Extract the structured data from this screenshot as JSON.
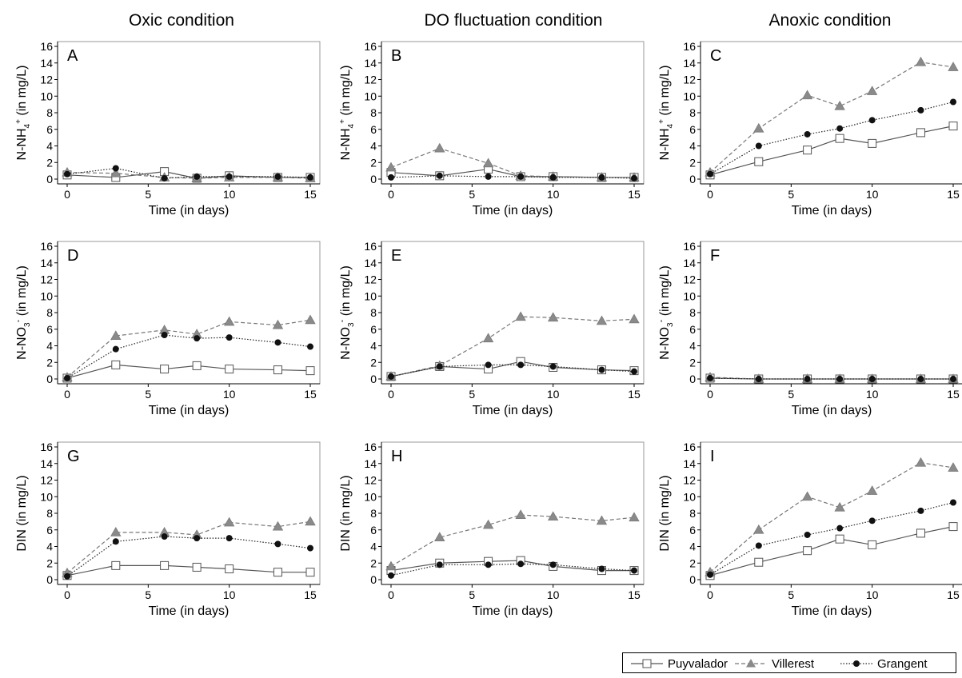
{
  "column_titles": [
    "Oxic condition",
    "DO fluctuation condition",
    "Anoxic condition"
  ],
  "legend": [
    {
      "name": "Puyvalador",
      "marker": "square-open",
      "dash": "solid"
    },
    {
      "name": "Villerest",
      "marker": "triangle-gray",
      "dash": "dashed"
    },
    {
      "name": "Grangent",
      "marker": "circle-black",
      "dash": "dotted"
    }
  ],
  "colors": {
    "Puyvalador": "#666666",
    "Villerest": "#888888",
    "Grangent": "#111111"
  },
  "chart_data": [
    {
      "type": "line",
      "panel": "A",
      "row_ylabel": "NH4",
      "xlabel": "Time (in days)",
      "x": [
        0,
        3,
        6,
        8,
        10,
        13,
        15
      ],
      "xlim": [
        0,
        15
      ],
      "ylim": [
        0,
        16
      ],
      "xticks": [
        0,
        5,
        10,
        15
      ],
      "yticks": [
        0,
        2,
        4,
        6,
        8,
        10,
        12,
        14,
        16
      ],
      "series": [
        {
          "name": "Puyvalador",
          "values": [
            0.5,
            0.2,
            0.9,
            0.1,
            0.4,
            0.2,
            0.2
          ]
        },
        {
          "name": "Villerest",
          "values": [
            0.8,
            0.7,
            0.2,
            0.1,
            0.2,
            0.2,
            0.1
          ]
        },
        {
          "name": "Grangent",
          "values": [
            0.6,
            1.3,
            0.1,
            0.3,
            0.3,
            0.3,
            0.2
          ]
        }
      ]
    },
    {
      "type": "line",
      "panel": "B",
      "row_ylabel": "NH4",
      "xlabel": "Time (in days)",
      "x": [
        0,
        3,
        6,
        8,
        10,
        13,
        15
      ],
      "xlim": [
        0,
        15
      ],
      "ylim": [
        0,
        16
      ],
      "xticks": [
        0,
        5,
        10,
        15
      ],
      "yticks": [
        0,
        2,
        4,
        6,
        8,
        10,
        12,
        14,
        16
      ],
      "series": [
        {
          "name": "Puyvalador",
          "values": [
            0.8,
            0.4,
            1.2,
            0.3,
            0.3,
            0.2,
            0.2
          ]
        },
        {
          "name": "Villerest",
          "values": [
            1.4,
            3.7,
            1.9,
            0.4,
            0.3,
            0.2,
            0.2
          ]
        },
        {
          "name": "Grangent",
          "values": [
            0.2,
            0.4,
            0.3,
            0.3,
            0.2,
            0.2,
            0.1
          ]
        }
      ]
    },
    {
      "type": "line",
      "panel": "C",
      "row_ylabel": "NH4",
      "xlabel": "Time (in days)",
      "x": [
        0,
        3,
        6,
        8,
        10,
        13,
        15
      ],
      "xlim": [
        0,
        15
      ],
      "ylim": [
        0,
        16
      ],
      "xticks": [
        0,
        5,
        10,
        15
      ],
      "yticks": [
        0,
        2,
        4,
        6,
        8,
        10,
        12,
        14,
        16
      ],
      "series": [
        {
          "name": "Puyvalador",
          "values": [
            0.5,
            2.1,
            3.5,
            4.9,
            4.3,
            5.6,
            6.4
          ]
        },
        {
          "name": "Villerest",
          "values": [
            0.8,
            6.1,
            10.1,
            8.8,
            10.6,
            14.1,
            13.5
          ]
        },
        {
          "name": "Grangent",
          "values": [
            0.6,
            4.0,
            5.4,
            6.1,
            7.1,
            8.3,
            9.3
          ]
        }
      ]
    },
    {
      "type": "line",
      "panel": "D",
      "row_ylabel": "NO3",
      "xlabel": "Time (in days)",
      "x": [
        0,
        3,
        6,
        8,
        10,
        13,
        15
      ],
      "xlim": [
        0,
        15
      ],
      "ylim": [
        0,
        16
      ],
      "xticks": [
        0,
        5,
        10,
        15
      ],
      "yticks": [
        0,
        2,
        4,
        6,
        8,
        10,
        12,
        14,
        16
      ],
      "series": [
        {
          "name": "Puyvalador",
          "values": [
            0.1,
            1.7,
            1.2,
            1.6,
            1.2,
            1.1,
            1.0
          ]
        },
        {
          "name": "Villerest",
          "values": [
            0.2,
            5.2,
            5.9,
            5.4,
            6.9,
            6.5,
            7.1
          ]
        },
        {
          "name": "Grangent",
          "values": [
            0.1,
            3.6,
            5.3,
            4.9,
            5.0,
            4.4,
            3.9
          ]
        }
      ]
    },
    {
      "type": "line",
      "panel": "E",
      "row_ylabel": "NO3",
      "xlabel": "Time (in days)",
      "x": [
        0,
        3,
        6,
        8,
        10,
        13,
        15
      ],
      "xlim": [
        0,
        15
      ],
      "ylim": [
        0,
        16
      ],
      "xticks": [
        0,
        5,
        10,
        15
      ],
      "yticks": [
        0,
        2,
        4,
        6,
        8,
        10,
        12,
        14,
        16
      ],
      "series": [
        {
          "name": "Puyvalador",
          "values": [
            0.3,
            1.5,
            1.2,
            2.1,
            1.4,
            1.1,
            1.0
          ]
        },
        {
          "name": "Villerest",
          "values": [
            0.3,
            1.6,
            4.9,
            7.5,
            7.4,
            7.0,
            7.2
          ]
        },
        {
          "name": "Grangent",
          "values": [
            0.3,
            1.5,
            1.7,
            1.7,
            1.5,
            1.1,
            0.9
          ]
        }
      ]
    },
    {
      "type": "line",
      "panel": "F",
      "row_ylabel": "NO3",
      "xlabel": "Time (in days)",
      "x": [
        0,
        3,
        6,
        8,
        10,
        13,
        15
      ],
      "xlim": [
        0,
        15
      ],
      "ylim": [
        0,
        16
      ],
      "xticks": [
        0,
        5,
        10,
        15
      ],
      "yticks": [
        0,
        2,
        4,
        6,
        8,
        10,
        12,
        14,
        16
      ],
      "series": [
        {
          "name": "Puyvalador",
          "values": [
            0.1,
            0.0,
            0.0,
            0.0,
            0.0,
            0.0,
            0.0
          ]
        },
        {
          "name": "Villerest",
          "values": [
            0.2,
            0.0,
            0.0,
            0.0,
            0.0,
            0.0,
            0.0
          ]
        },
        {
          "name": "Grangent",
          "values": [
            0.1,
            0.0,
            0.0,
            0.0,
            0.0,
            0.0,
            0.0
          ]
        }
      ]
    },
    {
      "type": "line",
      "panel": "G",
      "row_ylabel": "DIN",
      "xlabel": "Time (in days)",
      "x": [
        0,
        3,
        6,
        8,
        10,
        13,
        15
      ],
      "xlim": [
        0,
        15
      ],
      "ylim": [
        0,
        16
      ],
      "xticks": [
        0,
        5,
        10,
        15
      ],
      "yticks": [
        0,
        2,
        4,
        6,
        8,
        10,
        12,
        14,
        16
      ],
      "series": [
        {
          "name": "Puyvalador",
          "values": [
            0.5,
            1.7,
            1.7,
            1.5,
            1.3,
            0.9,
            0.9
          ]
        },
        {
          "name": "Villerest",
          "values": [
            0.8,
            5.7,
            5.7,
            5.4,
            6.9,
            6.4,
            7.0
          ]
        },
        {
          "name": "Grangent",
          "values": [
            0.4,
            4.6,
            5.2,
            5.0,
            5.0,
            4.3,
            3.8
          ]
        }
      ]
    },
    {
      "type": "line",
      "panel": "H",
      "row_ylabel": "DIN",
      "xlabel": "Time (in days)",
      "x": [
        0,
        3,
        6,
        8,
        10,
        13,
        15
      ],
      "xlim": [
        0,
        15
      ],
      "ylim": [
        0,
        16
      ],
      "xticks": [
        0,
        5,
        10,
        15
      ],
      "yticks": [
        0,
        2,
        4,
        6,
        8,
        10,
        12,
        14,
        16
      ],
      "series": [
        {
          "name": "Puyvalador",
          "values": [
            1.1,
            2.0,
            2.2,
            2.3,
            1.6,
            1.1,
            1.1
          ]
        },
        {
          "name": "Villerest",
          "values": [
            1.6,
            5.1,
            6.6,
            7.8,
            7.6,
            7.1,
            7.5
          ]
        },
        {
          "name": "Grangent",
          "values": [
            0.5,
            1.8,
            1.8,
            1.9,
            1.8,
            1.3,
            1.1
          ]
        }
      ]
    },
    {
      "type": "line",
      "panel": "I",
      "row_ylabel": "DIN",
      "xlabel": "Time (in days)",
      "x": [
        0,
        3,
        6,
        8,
        10,
        13,
        15
      ],
      "xlim": [
        0,
        15
      ],
      "ylim": [
        0,
        16
      ],
      "xticks": [
        0,
        5,
        10,
        15
      ],
      "yticks": [
        0,
        2,
        4,
        6,
        8,
        10,
        12,
        14,
        16
      ],
      "series": [
        {
          "name": "Puyvalador",
          "values": [
            0.5,
            2.1,
            3.5,
            4.9,
            4.2,
            5.6,
            6.4
          ]
        },
        {
          "name": "Villerest",
          "values": [
            0.9,
            6.0,
            10.0,
            8.7,
            10.7,
            14.1,
            13.5
          ]
        },
        {
          "name": "Grangent",
          "values": [
            0.6,
            4.1,
            5.4,
            6.2,
            7.1,
            8.3,
            9.3
          ]
        }
      ]
    }
  ]
}
